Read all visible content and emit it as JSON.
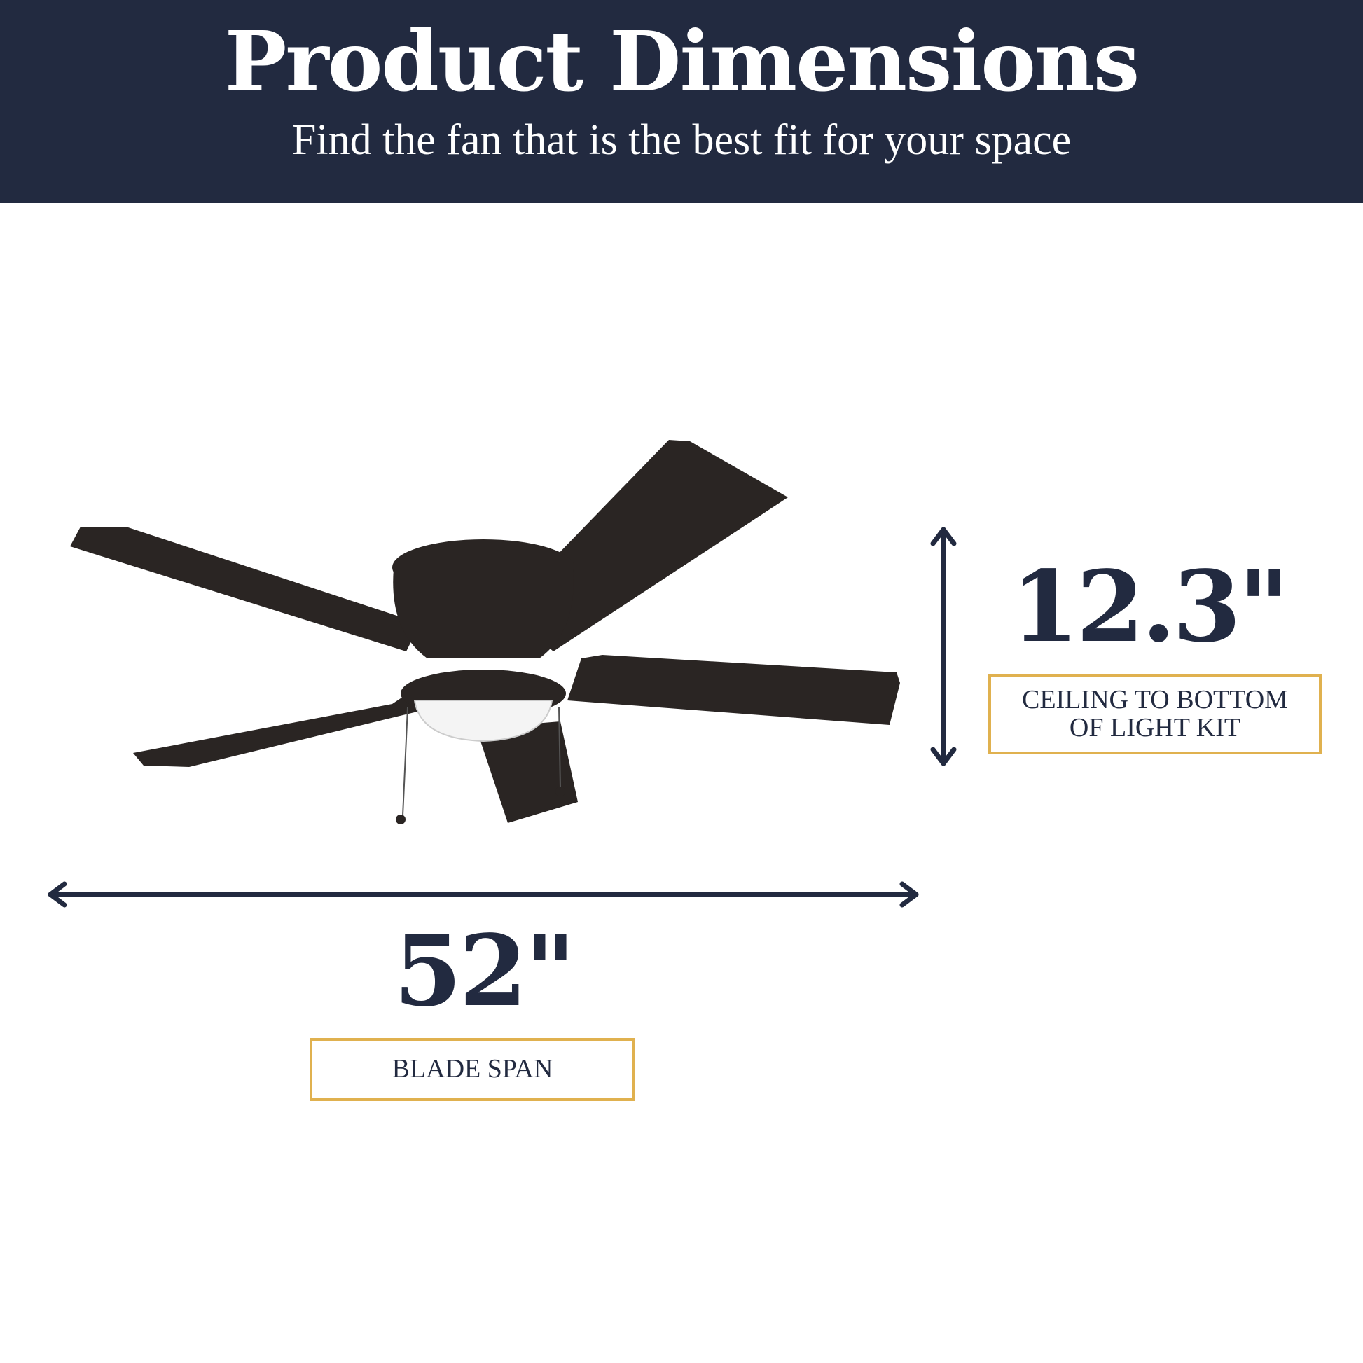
{
  "header": {
    "title": "Product Dimensions",
    "subtitle": "Find the fan that is the best fit for your space"
  },
  "dimensions": {
    "height": {
      "value": "12.3\"",
      "label_line1": "CEILING TO BOTTOM",
      "label_line2": "OF LIGHT KIT"
    },
    "span": {
      "value": "52\"",
      "label": "BLADE SPAN"
    }
  },
  "colors": {
    "navy": "#222a40",
    "gold": "#e0b14f",
    "fan": "#231f1e"
  }
}
